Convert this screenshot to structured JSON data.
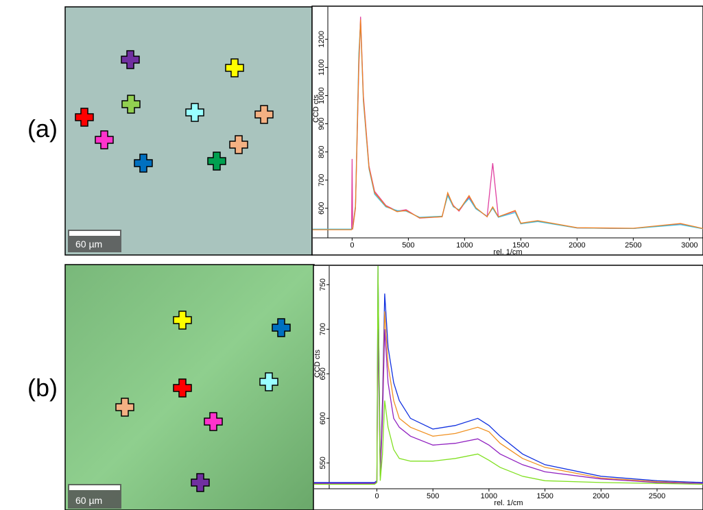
{
  "panels": [
    {
      "label": "(a)",
      "scale_bar": "60 µm"
    },
    {
      "label": "(b)",
      "scale_bar": "60 µm"
    }
  ],
  "chart_data": [
    {
      "type": "line",
      "x_label": "rel. 1/cm",
      "y_label": "CCD cts",
      "x": [
        -350,
        -20,
        -5,
        0,
        5,
        30,
        60,
        75,
        100,
        150,
        200,
        300,
        400,
        480,
        600,
        800,
        850,
        900,
        950,
        1040,
        1100,
        1200,
        1250,
        1300,
        1450,
        1500,
        1650,
        2000,
        2500,
        2920,
        3120
      ],
      "series": [
        {
          "color": "#e040a0",
          "values": [
            525,
            525,
            525,
            775,
            525,
            600,
            1100,
            1280,
            1000,
            750,
            660,
            610,
            590,
            595,
            565,
            570,
            650,
            610,
            590,
            640,
            600,
            570,
            760,
            570,
            590,
            545,
            555,
            530,
            528,
            545,
            527
          ]
        },
        {
          "color": "#40c0e0",
          "values": [
            526,
            526,
            526,
            530,
            530,
            610,
            1150,
            1260,
            980,
            740,
            650,
            605,
            592,
            590,
            568,
            572,
            645,
            605,
            595,
            635,
            598,
            572,
            600,
            568,
            585,
            545,
            553,
            530,
            528,
            542,
            527
          ]
        },
        {
          "color": "#f08020",
          "values": [
            524,
            524,
            524,
            528,
            528,
            605,
            1120,
            1270,
            990,
            745,
            655,
            608,
            588,
            592,
            566,
            570,
            655,
            608,
            592,
            645,
            602,
            570,
            605,
            570,
            592,
            547,
            556,
            531,
            529,
            546,
            528
          ]
        }
      ],
      "xlim": [
        -350,
        3120
      ],
      "xticks": [
        0,
        500,
        1000,
        1500,
        2000,
        2500,
        3000
      ],
      "ylim": [
        495,
        1315
      ],
      "yticks": [
        600,
        700,
        800,
        900,
        1000,
        1100,
        1200
      ]
    },
    {
      "type": "line",
      "x_label": "rel. 1/cm",
      "y_label": "CCD cts",
      "x": [
        -560,
        -20,
        0,
        10,
        30,
        50,
        70,
        100,
        150,
        200,
        300,
        500,
        700,
        900,
        1000,
        1100,
        1300,
        1500,
        2000,
        2500,
        2910
      ],
      "series": [
        {
          "color": "#1030e0",
          "values": [
            528,
            528,
            530,
            771,
            540,
            620,
            740,
            680,
            640,
            620,
            600,
            588,
            592,
            600,
            592,
            580,
            560,
            548,
            535,
            530,
            528
          ]
        },
        {
          "color": "#f09020",
          "values": [
            527,
            527,
            529,
            720,
            538,
            610,
            720,
            660,
            620,
            600,
            590,
            580,
            583,
            590,
            585,
            572,
            555,
            545,
            533,
            529,
            527
          ]
        },
        {
          "color": "#9020c0",
          "values": [
            527,
            527,
            529,
            700,
            535,
            600,
            700,
            640,
            600,
            590,
            580,
            570,
            572,
            577,
            570,
            560,
            548,
            540,
            532,
            528,
            527
          ]
        },
        {
          "color": "#80e020",
          "values": [
            526,
            526,
            528,
            771,
            530,
            560,
            620,
            590,
            565,
            555,
            552,
            552,
            555,
            560,
            553,
            545,
            535,
            530,
            528,
            527,
            526
          ]
        }
      ],
      "xlim": [
        -560,
        2910
      ],
      "xticks": [
        0,
        500,
        1000,
        1500,
        2000,
        2500
      ],
      "ylim": [
        521,
        771
      ],
      "yticks": [
        550,
        600,
        650,
        700,
        750
      ]
    }
  ]
}
